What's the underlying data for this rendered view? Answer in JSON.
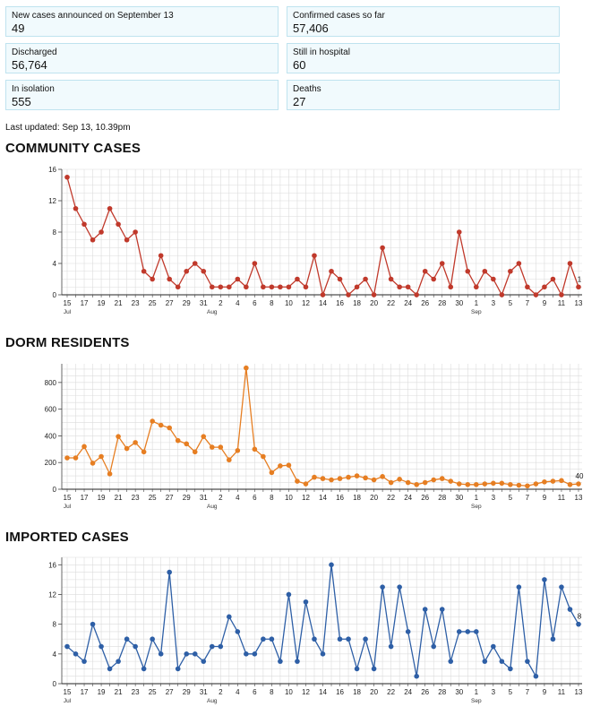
{
  "stats": [
    {
      "label": "New cases announced on September 13",
      "value": "49"
    },
    {
      "label": "Confirmed cases so far",
      "value": "57,406"
    },
    {
      "label": "Discharged",
      "value": "56,764"
    },
    {
      "label": "Still in hospital",
      "value": "60"
    },
    {
      "label": "In isolation",
      "value": "555"
    },
    {
      "label": "Deaths",
      "value": "27"
    }
  ],
  "last_updated": "Last updated: Sep 13, 10.39pm",
  "chart_data": [
    {
      "type": "line",
      "title": "COMMUNITY CASES",
      "color": "#c0392b",
      "x_tick_labels": [
        "15",
        "17",
        "19",
        "21",
        "23",
        "25",
        "27",
        "29",
        "31",
        "2",
        "4",
        "6",
        "8",
        "10",
        "12",
        "14",
        "16",
        "18",
        "20",
        "22",
        "24",
        "26",
        "28",
        "30",
        "1",
        "3",
        "5",
        "7",
        "9",
        "11",
        "13"
      ],
      "month_labels": [
        "Jul",
        "Aug",
        "Sep"
      ],
      "y_ticks": [
        0,
        4,
        8,
        12,
        16
      ],
      "ylim": [
        0,
        16
      ],
      "grid": true,
      "end_label": "1",
      "values": [
        15,
        11,
        9,
        7,
        8,
        11,
        9,
        7,
        8,
        3,
        2,
        5,
        2,
        1,
        3,
        4,
        3,
        1,
        1,
        1,
        2,
        1,
        4,
        1,
        1,
        1,
        1,
        2,
        1,
        5,
        0,
        3,
        2,
        0,
        1,
        2,
        0,
        6,
        2,
        1,
        1,
        0,
        3,
        2,
        4,
        1,
        8,
        3,
        1,
        3,
        2,
        0,
        3,
        4,
        1,
        0,
        1,
        2,
        0,
        4,
        1
      ]
    },
    {
      "type": "line",
      "title": "DORM RESIDENTS",
      "color": "#e67e22",
      "x_tick_labels": [
        "15",
        "17",
        "19",
        "21",
        "23",
        "25",
        "27",
        "29",
        "31",
        "2",
        "4",
        "6",
        "8",
        "10",
        "12",
        "14",
        "16",
        "18",
        "20",
        "22",
        "24",
        "26",
        "28",
        "30",
        "1",
        "3",
        "5",
        "7",
        "9",
        "11",
        "13"
      ],
      "month_labels": [
        "Jul",
        "Aug",
        "Sep"
      ],
      "y_ticks": [
        0,
        200,
        400,
        600,
        800
      ],
      "ylim": [
        0,
        940
      ],
      "grid": true,
      "end_label": "40",
      "values": [
        235,
        235,
        320,
        195,
        245,
        115,
        395,
        305,
        350,
        280,
        510,
        480,
        460,
        365,
        340,
        280,
        395,
        315,
        315,
        220,
        290,
        909,
        300,
        245,
        125,
        175,
        180,
        60,
        40,
        90,
        80,
        70,
        80,
        90,
        100,
        85,
        70,
        95,
        50,
        75,
        50,
        35,
        50,
        70,
        80,
        60,
        40,
        35,
        35,
        40,
        45,
        45,
        35,
        30,
        25,
        40,
        55,
        60,
        65,
        35,
        40
      ]
    },
    {
      "type": "line",
      "title": "IMPORTED CASES",
      "color": "#2e5fa6",
      "x_tick_labels": [
        "15",
        "17",
        "19",
        "21",
        "23",
        "25",
        "27",
        "29",
        "31",
        "2",
        "4",
        "6",
        "8",
        "10",
        "12",
        "14",
        "16",
        "18",
        "20",
        "22",
        "24",
        "26",
        "28",
        "30",
        "1",
        "3",
        "5",
        "7",
        "9",
        "11",
        "13"
      ],
      "month_labels": [
        "Jul",
        "Aug",
        "Sep"
      ],
      "y_ticks": [
        0,
        4,
        8,
        12,
        16
      ],
      "ylim": [
        0,
        17
      ],
      "grid": true,
      "end_label": "8",
      "values": [
        5,
        4,
        3,
        8,
        5,
        2,
        3,
        6,
        5,
        2,
        6,
        4,
        15,
        2,
        4,
        4,
        3,
        5,
        5,
        9,
        7,
        4,
        4,
        6,
        6,
        3,
        12,
        3,
        11,
        6,
        4,
        16,
        6,
        6,
        2,
        6,
        2,
        13,
        5,
        13,
        7,
        1,
        10,
        5,
        10,
        3,
        7,
        7,
        7,
        3,
        5,
        3,
        2,
        13,
        3,
        1,
        14,
        6,
        13,
        10,
        8
      ]
    }
  ]
}
